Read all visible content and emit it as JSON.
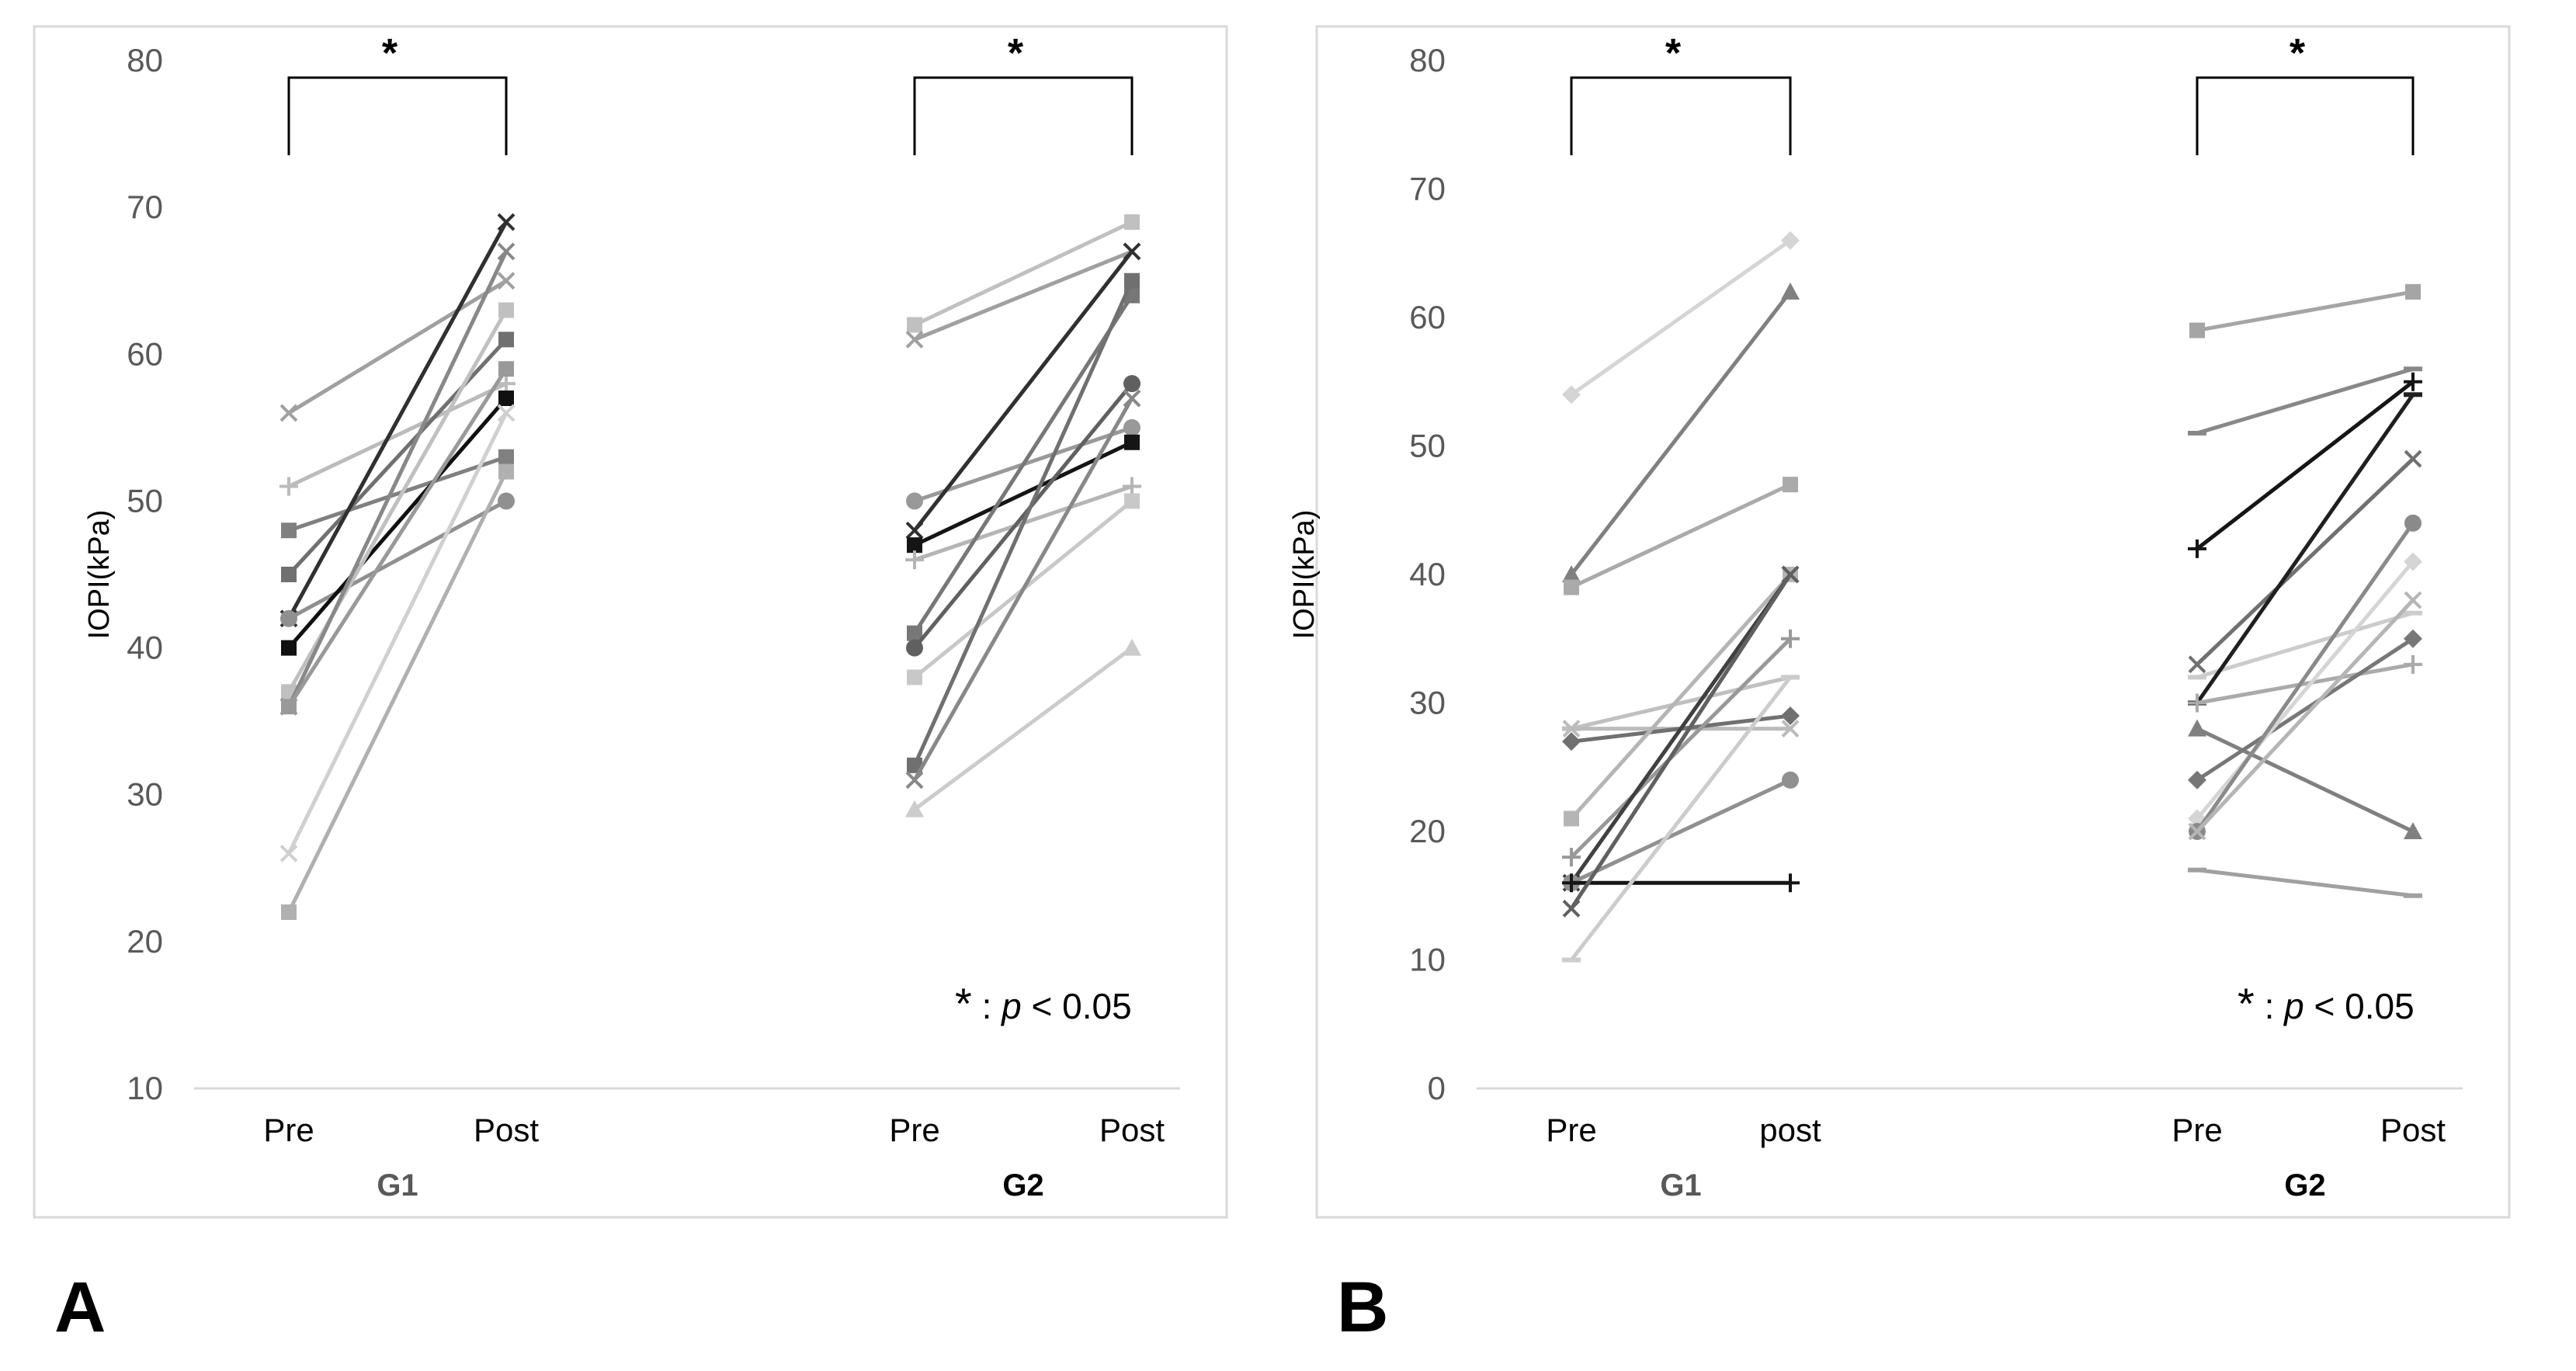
{
  "chart_data": [
    {
      "type": "line",
      "panel_label": "A",
      "ylabel": "IOPI(kPa)",
      "ylim": [
        10,
        80
      ],
      "yticks": [
        10,
        20,
        30,
        40,
        50,
        60,
        70,
        80
      ],
      "x_groups": [
        {
          "name": "G1",
          "name_bold": false,
          "categories": [
            "Pre",
            "Post"
          ]
        },
        {
          "name": "G2",
          "name_bold": true,
          "categories": [
            "Pre",
            "Post"
          ]
        }
      ],
      "significance": [
        {
          "group": "G1",
          "marker": "*"
        },
        {
          "group": "G2",
          "marker": "*"
        }
      ],
      "annotation": {
        "star": "*",
        "separator": " : ",
        "p": "p",
        "rest": " < 0.05"
      },
      "series": [
        {
          "group": "G1",
          "values": [
            56,
            65
          ],
          "color": "#a0a0a0",
          "marker": "x"
        },
        {
          "group": "G1",
          "values": [
            51,
            58
          ],
          "color": "#bbbbbb",
          "marker": "plus"
        },
        {
          "group": "G1",
          "values": [
            48,
            53
          ],
          "color": "#808080",
          "marker": "square"
        },
        {
          "group": "G1",
          "values": [
            45,
            61
          ],
          "color": "#707070",
          "marker": "square"
        },
        {
          "group": "G1",
          "values": [
            42,
            69
          ],
          "color": "#303030",
          "marker": "x"
        },
        {
          "group": "G1",
          "values": [
            42,
            50
          ],
          "color": "#909090",
          "marker": "circle"
        },
        {
          "group": "G1",
          "values": [
            40,
            57
          ],
          "color": "#101010",
          "marker": "square"
        },
        {
          "group": "G1",
          "values": [
            37,
            63
          ],
          "color": "#c0c0c0",
          "marker": "square"
        },
        {
          "group": "G1",
          "values": [
            36,
            67
          ],
          "color": "#888888",
          "marker": "x"
        },
        {
          "group": "G1",
          "values": [
            36,
            59
          ],
          "color": "#999999",
          "marker": "square"
        },
        {
          "group": "G1",
          "values": [
            26,
            56
          ],
          "color": "#d0d0d0",
          "marker": "x"
        },
        {
          "group": "G1",
          "values": [
            22,
            52
          ],
          "color": "#b0b0b0",
          "marker": "square"
        },
        {
          "group": "G2",
          "values": [
            62,
            69
          ],
          "color": "#c0c0c0",
          "marker": "square"
        },
        {
          "group": "G2",
          "values": [
            61,
            67
          ],
          "color": "#a0a0a0",
          "marker": "x"
        },
        {
          "group": "G2",
          "values": [
            50,
            55
          ],
          "color": "#999999",
          "marker": "circle"
        },
        {
          "group": "G2",
          "values": [
            48,
            67
          ],
          "color": "#303030",
          "marker": "x"
        },
        {
          "group": "G2",
          "values": [
            47,
            54
          ],
          "color": "#151515",
          "marker": "square"
        },
        {
          "group": "G2",
          "values": [
            46,
            51
          ],
          "color": "#b5b5b5",
          "marker": "plus"
        },
        {
          "group": "G2",
          "values": [
            41,
            64
          ],
          "color": "#777777",
          "marker": "square"
        },
        {
          "group": "G2",
          "values": [
            40,
            58
          ],
          "color": "#606060",
          "marker": "circle"
        },
        {
          "group": "G2",
          "values": [
            38,
            50
          ],
          "color": "#c8c8c8",
          "marker": "square"
        },
        {
          "group": "G2",
          "values": [
            32,
            65
          ],
          "color": "#707070",
          "marker": "square"
        },
        {
          "group": "G2",
          "values": [
            31,
            57
          ],
          "color": "#888888",
          "marker": "x"
        },
        {
          "group": "G2",
          "values": [
            29,
            40
          ],
          "color": "#cccccc",
          "marker": "triangle"
        }
      ]
    },
    {
      "type": "line",
      "panel_label": "B",
      "ylabel": "IOPI(kPa)",
      "ylim": [
        0,
        80
      ],
      "yticks": [
        0,
        10,
        20,
        30,
        40,
        50,
        60,
        70,
        80
      ],
      "x_groups": [
        {
          "name": "G1",
          "name_bold": false,
          "categories": [
            "Pre",
            "post"
          ]
        },
        {
          "name": "G2",
          "name_bold": true,
          "categories": [
            "Pre",
            "Post"
          ]
        }
      ],
      "significance": [
        {
          "group": "G1",
          "marker": "*"
        },
        {
          "group": "G2",
          "marker": "*"
        }
      ],
      "annotation": {
        "star": "*",
        "separator": " : ",
        "p": "p",
        "rest": " < 0.05"
      },
      "series": [
        {
          "group": "G1",
          "values": [
            54,
            66
          ],
          "color": "#d5d5d5",
          "marker": "diamond"
        },
        {
          "group": "G1",
          "values": [
            40,
            62
          ],
          "color": "#808080",
          "marker": "triangle"
        },
        {
          "group": "G1",
          "values": [
            39,
            47
          ],
          "color": "#aaaaaa",
          "marker": "square"
        },
        {
          "group": "G1",
          "values": [
            28,
            32
          ],
          "color": "#c0c0c0",
          "marker": "dash"
        },
        {
          "group": "G1",
          "values": [
            28,
            28
          ],
          "color": "#bbbbbb",
          "marker": "x"
        },
        {
          "group": "G1",
          "values": [
            27,
            29
          ],
          "color": "#707070",
          "marker": "diamond"
        },
        {
          "group": "G1",
          "values": [
            21,
            40
          ],
          "color": "#b5b5b5",
          "marker": "square"
        },
        {
          "group": "G1",
          "values": [
            18,
            35
          ],
          "color": "#999999",
          "marker": "plus"
        },
        {
          "group": "G1",
          "values": [
            16,
            40
          ],
          "color": "#404040",
          "marker": "x"
        },
        {
          "group": "G1",
          "values": [
            16,
            24
          ],
          "color": "#909090",
          "marker": "circle"
        },
        {
          "group": "G1",
          "values": [
            16,
            16
          ],
          "color": "#151515",
          "marker": "plus"
        },
        {
          "group": "G1",
          "values": [
            14,
            40
          ],
          "color": "#606060",
          "marker": "x"
        },
        {
          "group": "G1",
          "values": [
            10,
            32
          ],
          "color": "#cccccc",
          "marker": "dash"
        },
        {
          "group": "G2",
          "values": [
            59,
            62
          ],
          "color": "#a5a5a5",
          "marker": "square"
        },
        {
          "group": "G2",
          "values": [
            51,
            56
          ],
          "color": "#888888",
          "marker": "dash"
        },
        {
          "group": "G2",
          "values": [
            42,
            55
          ],
          "color": "#151515",
          "marker": "plus"
        },
        {
          "group": "G2",
          "values": [
            33,
            49
          ],
          "color": "#707070",
          "marker": "x"
        },
        {
          "group": "G2",
          "values": [
            32,
            37
          ],
          "color": "#cccccc",
          "marker": "dash"
        },
        {
          "group": "G2",
          "values": [
            30,
            54
          ],
          "color": "#202020",
          "marker": "dash"
        },
        {
          "group": "G2",
          "values": [
            30,
            33
          ],
          "color": "#aaaaaa",
          "marker": "plus"
        },
        {
          "group": "G2",
          "values": [
            28,
            20
          ],
          "color": "#808080",
          "marker": "triangle"
        },
        {
          "group": "G2",
          "values": [
            24,
            35
          ],
          "color": "#777777",
          "marker": "diamond"
        },
        {
          "group": "G2",
          "values": [
            21,
            41
          ],
          "color": "#d5d5d5",
          "marker": "diamond"
        },
        {
          "group": "G2",
          "values": [
            20,
            44
          ],
          "color": "#8a8a8a",
          "marker": "circle"
        },
        {
          "group": "G2",
          "values": [
            20,
            38
          ],
          "color": "#b5b5b5",
          "marker": "x"
        },
        {
          "group": "G2",
          "values": [
            17,
            15
          ],
          "color": "#a0a0a0",
          "marker": "dash"
        }
      ]
    }
  ]
}
